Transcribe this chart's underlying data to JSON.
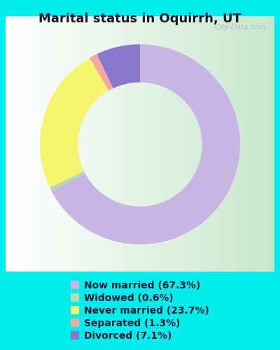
{
  "title": "Marital status in Oquirrh, UT",
  "categories": [
    "Now married",
    "Widowed",
    "Never married",
    "Separated",
    "Divorced"
  ],
  "values": [
    67.3,
    0.6,
    23.7,
    1.3,
    7.1
  ],
  "colors": [
    "#c9b5e3",
    "#b8d8b0",
    "#f5f570",
    "#f5a8a0",
    "#8877cc"
  ],
  "background_outer": "#00eeee",
  "background_inner_color": "#d8eedc",
  "legend_labels": [
    "Now married (67.3%)",
    "Widowed (0.6%)",
    "Never married (23.7%)",
    "Separated (1.3%)",
    "Divorced (7.1%)"
  ],
  "watermark": "City-Data.com",
  "title_fontsize": 13,
  "legend_fontsize": 10,
  "donut_width": 0.38,
  "startangle": 90
}
